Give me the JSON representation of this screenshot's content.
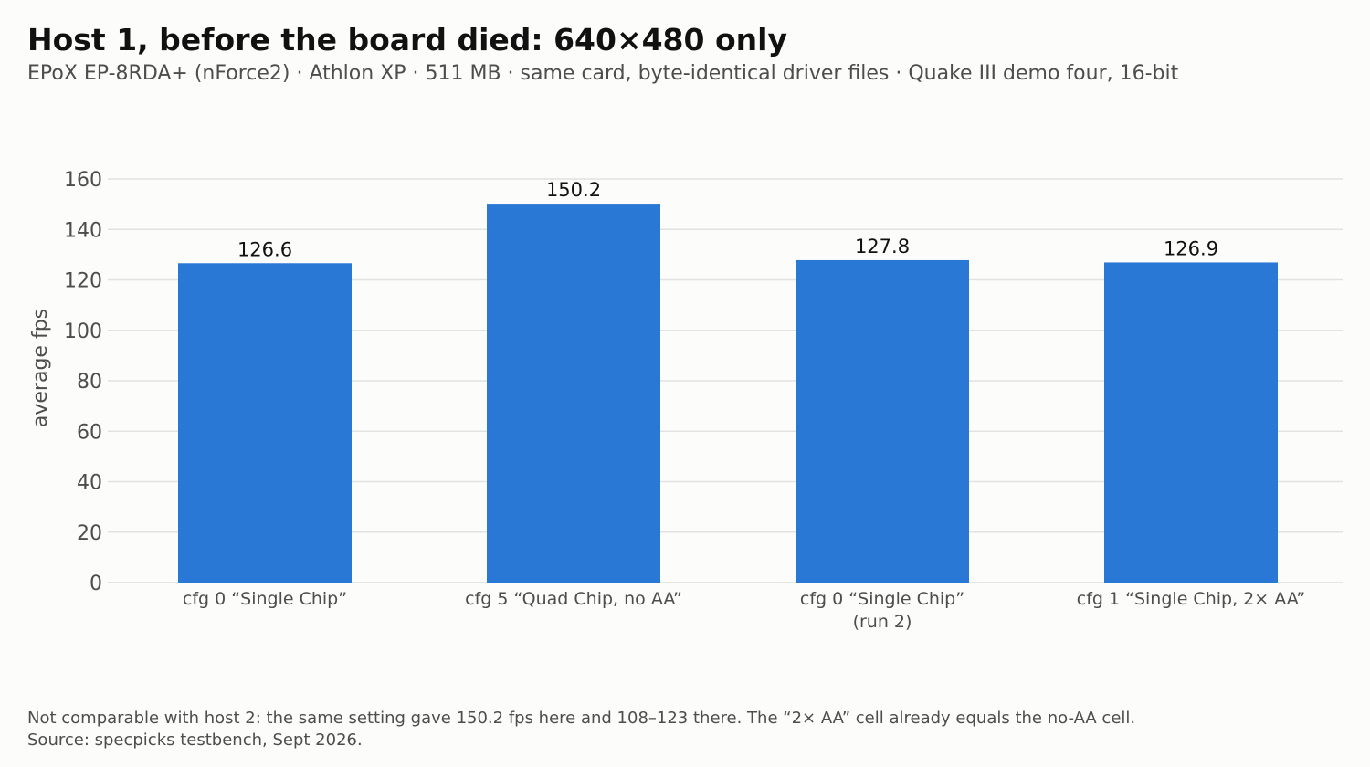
{
  "header": {
    "title": "Host 1, before the board died: 640×480 only",
    "subtitle": "EPoX EP-8RDA+ (nForce2) · Athlon XP · 511 MB · same card, byte-identical driver files · Quake III demo four, 16-bit"
  },
  "footer": {
    "note": "Not comparable with host 2: the same setting gave 150.2 fps here and 108–123 there. The “2× AA” cell already equals the no-AA cell.",
    "source": "Source: specpicks testbench, Sept 2026."
  },
  "colors": {
    "bar": "#2a78d6",
    "grid": "#e2e2e2",
    "axis_text": "#4d4d4d",
    "label_text": "#111111"
  },
  "chart_data": {
    "type": "bar",
    "categories": [
      [
        "cfg 0 “Single Chip”"
      ],
      [
        "cfg 5 “Quad Chip, no AA”"
      ],
      [
        "cfg 0 “Single Chip”",
        "(run 2)"
      ],
      [
        "cfg 1 “Single Chip, 2× AA”"
      ]
    ],
    "values": [
      126.6,
      150.2,
      127.8,
      126.9
    ],
    "value_labels": [
      "126.6",
      "150.2",
      "127.8",
      "126.9"
    ],
    "ylabel": "average fps",
    "xlabel": "",
    "ylim": [
      0,
      160
    ],
    "yticks": [
      0,
      20,
      40,
      60,
      80,
      100,
      120,
      140,
      160
    ],
    "grid": true
  }
}
